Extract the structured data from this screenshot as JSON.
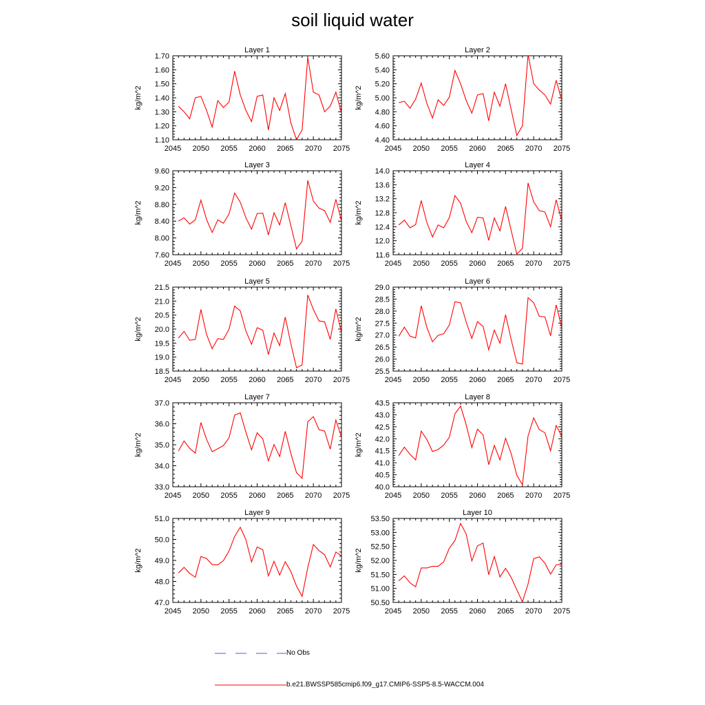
{
  "title": "soil liquid water",
  "legend": [
    {
      "label": "No Obs",
      "color": "#5a5ad0",
      "dash": true
    },
    {
      "label": "b.e21.BWSSP585cmip6.f09_g17.CMIP6-SSP5-8.5-WACCM.004",
      "color": "#ff0000",
      "dash": false
    }
  ],
  "chart_data": [
    {
      "type": "line",
      "title": "Layer 1",
      "ylabel": "kg/m^2",
      "xlim": [
        2045,
        2075
      ],
      "xticks": [
        "2045",
        "2050",
        "2055",
        "2060",
        "2065",
        "2070",
        "2075"
      ],
      "ylim": [
        1.1,
        1.7
      ],
      "yticks": [
        "1.10",
        "1.20",
        "1.30",
        "1.40",
        "1.50",
        "1.60",
        "1.70"
      ],
      "series": [
        {
          "color": "#ff0000",
          "x": [
            2046,
            2047,
            2048,
            2049,
            2050,
            2051,
            2052,
            2053,
            2054,
            2055,
            2056,
            2057,
            2058,
            2059,
            2060,
            2061,
            2062,
            2063,
            2064,
            2065,
            2066,
            2067,
            2068,
            2069,
            2070,
            2071,
            2072,
            2073,
            2074,
            2075
          ],
          "values": [
            1.34,
            1.3,
            1.25,
            1.4,
            1.41,
            1.31,
            1.19,
            1.38,
            1.33,
            1.37,
            1.59,
            1.42,
            1.31,
            1.23,
            1.41,
            1.42,
            1.17,
            1.4,
            1.31,
            1.43,
            1.22,
            1.1,
            1.17,
            1.69,
            1.44,
            1.42,
            1.3,
            1.34,
            1.44,
            1.29
          ]
        }
      ]
    },
    {
      "type": "line",
      "title": "Layer 2",
      "ylabel": "kg/m^2",
      "xlim": [
        2045,
        2075
      ],
      "xticks": [
        "2045",
        "2050",
        "2055",
        "2060",
        "2065",
        "2070",
        "2075"
      ],
      "ylim": [
        4.4,
        5.6
      ],
      "yticks": [
        "4.40",
        "4.60",
        "4.80",
        "5.00",
        "5.20",
        "5.40",
        "5.60"
      ],
      "series": [
        {
          "color": "#ff0000",
          "x": [
            2046,
            2047,
            2048,
            2049,
            2050,
            2051,
            2052,
            2053,
            2054,
            2055,
            2056,
            2057,
            2058,
            2059,
            2060,
            2061,
            2062,
            2063,
            2064,
            2065,
            2066,
            2067,
            2068,
            2069,
            2070,
            2071,
            2072,
            2073,
            2074,
            2075
          ],
          "values": [
            4.93,
            4.95,
            4.85,
            4.98,
            5.21,
            4.92,
            4.71,
            4.97,
            4.89,
            5.01,
            5.39,
            5.2,
            4.96,
            4.78,
            5.04,
            5.06,
            4.67,
            5.08,
            4.88,
            5.2,
            4.83,
            4.46,
            4.6,
            5.62,
            5.2,
            5.11,
            5.04,
            4.91,
            5.25,
            4.96
          ]
        }
      ]
    },
    {
      "type": "line",
      "title": "Layer 3",
      "ylabel": "kg/m^2",
      "xlim": [
        2045,
        2075
      ],
      "xticks": [
        "2045",
        "2050",
        "2055",
        "2060",
        "2065",
        "2070",
        "2075"
      ],
      "ylim": [
        7.6,
        9.6
      ],
      "yticks": [
        "7.60",
        "8.00",
        "8.40",
        "8.80",
        "9.20",
        "9.60"
      ],
      "series": [
        {
          "color": "#ff0000",
          "x": [
            2046,
            2047,
            2048,
            2049,
            2050,
            2051,
            2052,
            2053,
            2054,
            2055,
            2056,
            2057,
            2058,
            2059,
            2060,
            2061,
            2062,
            2063,
            2064,
            2065,
            2066,
            2067,
            2068,
            2069,
            2070,
            2071,
            2072,
            2073,
            2074,
            2075
          ],
          "values": [
            8.4,
            8.48,
            8.33,
            8.43,
            8.9,
            8.44,
            8.13,
            8.43,
            8.35,
            8.57,
            9.07,
            8.85,
            8.48,
            8.21,
            8.58,
            8.59,
            8.07,
            8.6,
            8.31,
            8.84,
            8.29,
            7.74,
            7.92,
            9.37,
            8.88,
            8.71,
            8.65,
            8.37,
            8.92,
            8.4
          ]
        }
      ]
    },
    {
      "type": "line",
      "title": "Layer 4",
      "ylabel": "kg/m^2",
      "xlim": [
        2045,
        2075
      ],
      "xticks": [
        "2045",
        "2050",
        "2055",
        "2060",
        "2065",
        "2070",
        "2075"
      ],
      "ylim": [
        11.6,
        14.0
      ],
      "yticks": [
        "11.6",
        "12.0",
        "12.4",
        "12.8",
        "13.2",
        "13.6",
        "14.0"
      ],
      "series": [
        {
          "color": "#ff0000",
          "x": [
            2046,
            2047,
            2048,
            2049,
            2050,
            2051,
            2052,
            2053,
            2054,
            2055,
            2056,
            2057,
            2058,
            2059,
            2060,
            2061,
            2062,
            2063,
            2064,
            2065,
            2066,
            2067,
            2068,
            2069,
            2070,
            2071,
            2072,
            2073,
            2074,
            2075
          ],
          "values": [
            12.45,
            12.59,
            12.37,
            12.46,
            13.15,
            12.52,
            12.11,
            12.45,
            12.37,
            12.66,
            13.29,
            13.07,
            12.55,
            12.23,
            12.67,
            12.65,
            12.01,
            12.65,
            12.28,
            12.98,
            12.29,
            11.62,
            11.78,
            13.65,
            13.11,
            12.86,
            12.82,
            12.4,
            13.17,
            12.57
          ]
        }
      ]
    },
    {
      "type": "line",
      "title": "Layer 5",
      "ylabel": "kg/m^2",
      "xlim": [
        2045,
        2075
      ],
      "xticks": [
        "2045",
        "2050",
        "2055",
        "2060",
        "2065",
        "2070",
        "2075"
      ],
      "ylim": [
        18.5,
        21.5
      ],
      "yticks": [
        "18.5",
        "19.0",
        "19.5",
        "20.0",
        "20.5",
        "21.0",
        "21.5"
      ],
      "series": [
        {
          "color": "#ff0000",
          "x": [
            2046,
            2047,
            2048,
            2049,
            2050,
            2051,
            2052,
            2053,
            2054,
            2055,
            2056,
            2057,
            2058,
            2059,
            2060,
            2061,
            2062,
            2063,
            2064,
            2065,
            2066,
            2067,
            2068,
            2069,
            2070,
            2071,
            2072,
            2073,
            2074,
            2075
          ],
          "values": [
            19.68,
            19.92,
            19.6,
            19.63,
            20.7,
            19.81,
            19.3,
            19.66,
            19.63,
            20.0,
            20.82,
            20.65,
            19.93,
            19.46,
            20.05,
            19.96,
            19.09,
            19.86,
            19.41,
            20.43,
            19.47,
            18.62,
            18.72,
            21.22,
            20.7,
            20.29,
            20.26,
            19.63,
            20.72,
            19.87
          ]
        }
      ]
    },
    {
      "type": "line",
      "title": "Layer 6",
      "ylabel": "kg/m^2",
      "xlim": [
        2045,
        2075
      ],
      "xticks": [
        "2045",
        "2050",
        "2055",
        "2060",
        "2065",
        "2070",
        "2075"
      ],
      "ylim": [
        25.5,
        29.0
      ],
      "yticks": [
        "25.5",
        "26.0",
        "26.5",
        "27.0",
        "27.5",
        "28.0",
        "28.5",
        "29.0"
      ],
      "series": [
        {
          "color": "#ff0000",
          "x": [
            2046,
            2047,
            2048,
            2049,
            2050,
            2051,
            2052,
            2053,
            2054,
            2055,
            2056,
            2057,
            2058,
            2059,
            2060,
            2061,
            2062,
            2063,
            2064,
            2065,
            2066,
            2067,
            2068,
            2069,
            2070,
            2071,
            2072,
            2073,
            2074,
            2075
          ],
          "values": [
            26.95,
            27.33,
            26.96,
            26.88,
            28.22,
            27.32,
            26.72,
            26.99,
            27.06,
            27.42,
            28.39,
            28.34,
            27.54,
            26.86,
            27.56,
            27.36,
            26.39,
            27.21,
            26.66,
            27.85,
            26.81,
            25.85,
            25.79,
            28.56,
            28.35,
            27.78,
            27.76,
            26.97,
            28.26,
            27.3
          ]
        }
      ]
    },
    {
      "type": "line",
      "title": "Layer 7",
      "ylabel": "kg/m^2",
      "xlim": [
        2045,
        2075
      ],
      "xticks": [
        "2045",
        "2050",
        "2055",
        "2060",
        "2065",
        "2070",
        "2075"
      ],
      "ylim": [
        33.0,
        37.0
      ],
      "yticks": [
        "33.0",
        "34.0",
        "35.0",
        "36.0",
        "37.0"
      ],
      "series": [
        {
          "color": "#ff0000",
          "x": [
            2046,
            2047,
            2048,
            2049,
            2050,
            2051,
            2052,
            2053,
            2054,
            2055,
            2056,
            2057,
            2058,
            2059,
            2060,
            2061,
            2062,
            2063,
            2064,
            2065,
            2066,
            2067,
            2068,
            2069,
            2070,
            2071,
            2072,
            2073,
            2074,
            2075
          ],
          "values": [
            34.7,
            35.18,
            34.83,
            34.6,
            36.06,
            35.26,
            34.67,
            34.81,
            34.96,
            35.33,
            36.41,
            36.52,
            35.6,
            34.76,
            35.57,
            35.28,
            34.23,
            35.01,
            34.44,
            35.64,
            34.58,
            33.67,
            33.4,
            36.09,
            36.34,
            35.72,
            35.65,
            34.79,
            36.18,
            35.36
          ]
        }
      ]
    },
    {
      "type": "line",
      "title": "Layer 8",
      "ylabel": "kg/m^2",
      "xlim": [
        2045,
        2075
      ],
      "xticks": [
        "2045",
        "2050",
        "2055",
        "2060",
        "2065",
        "2070",
        "2075"
      ],
      "ylim": [
        40.0,
        43.5
      ],
      "yticks": [
        "40.0",
        "40.5",
        "41.0",
        "41.5",
        "42.0",
        "42.5",
        "43.0",
        "43.5"
      ],
      "series": [
        {
          "color": "#ff0000",
          "x": [
            2046,
            2047,
            2048,
            2049,
            2050,
            2051,
            2052,
            2053,
            2054,
            2055,
            2056,
            2057,
            2058,
            2059,
            2060,
            2061,
            2062,
            2063,
            2064,
            2065,
            2066,
            2067,
            2068,
            2069,
            2070,
            2071,
            2072,
            2073,
            2074,
            2075
          ],
          "values": [
            41.3,
            41.65,
            41.35,
            41.12,
            42.32,
            41.97,
            41.47,
            41.55,
            41.74,
            42.06,
            43.04,
            43.36,
            42.58,
            41.63,
            42.4,
            42.16,
            40.92,
            41.72,
            41.12,
            42.02,
            41.38,
            40.48,
            40.08,
            42.12,
            42.87,
            42.38,
            42.25,
            41.5,
            42.55,
            42.11
          ]
        }
      ]
    },
    {
      "type": "line",
      "title": "Layer 9",
      "ylabel": "kg/m^2",
      "xlim": [
        2045,
        2075
      ],
      "xticks": [
        "2045",
        "2050",
        "2055",
        "2060",
        "2065",
        "2070",
        "2075"
      ],
      "ylim": [
        47.0,
        51.0
      ],
      "yticks": [
        "47.0",
        "48.0",
        "49.0",
        "50.0",
        "51.0"
      ],
      "series": [
        {
          "color": "#ff0000",
          "x": [
            2046,
            2047,
            2048,
            2049,
            2050,
            2051,
            2052,
            2053,
            2054,
            2055,
            2056,
            2057,
            2058,
            2059,
            2060,
            2061,
            2062,
            2063,
            2064,
            2065,
            2066,
            2067,
            2068,
            2069,
            2070,
            2071,
            2072,
            2073,
            2074,
            2075
          ],
          "values": [
            48.4,
            48.67,
            48.38,
            48.2,
            49.19,
            49.09,
            48.8,
            48.79,
            48.99,
            49.45,
            50.14,
            50.58,
            49.99,
            48.93,
            49.64,
            49.51,
            48.26,
            48.96,
            48.3,
            48.94,
            48.47,
            47.78,
            47.29,
            48.65,
            49.76,
            49.47,
            49.27,
            48.69,
            49.4,
            49.21
          ]
        }
      ]
    },
    {
      "type": "line",
      "title": "Layer 10",
      "ylabel": "kg/m^2",
      "xlim": [
        2045,
        2075
      ],
      "xticks": [
        "2045",
        "2050",
        "2055",
        "2060",
        "2065",
        "2070",
        "2075"
      ],
      "ylim": [
        50.5,
        53.5
      ],
      "yticks": [
        "50.50",
        "51.00",
        "51.50",
        "52.00",
        "52.50",
        "53.00",
        "53.50"
      ],
      "series": [
        {
          "color": "#ff0000",
          "x": [
            2046,
            2047,
            2048,
            2049,
            2050,
            2051,
            2052,
            2053,
            2054,
            2055,
            2056,
            2057,
            2058,
            2059,
            2060,
            2061,
            2062,
            2063,
            2064,
            2065,
            2066,
            2067,
            2068,
            2069,
            2070,
            2071,
            2072,
            2073,
            2074,
            2075
          ],
          "values": [
            51.27,
            51.45,
            51.2,
            51.06,
            51.73,
            51.73,
            51.79,
            51.79,
            51.95,
            52.44,
            52.71,
            53.32,
            52.94,
            51.98,
            52.52,
            52.62,
            51.49,
            52.14,
            51.41,
            51.72,
            51.39,
            50.95,
            50.52,
            51.16,
            52.06,
            52.13,
            51.9,
            51.51,
            51.84,
            51.87
          ]
        }
      ]
    }
  ]
}
